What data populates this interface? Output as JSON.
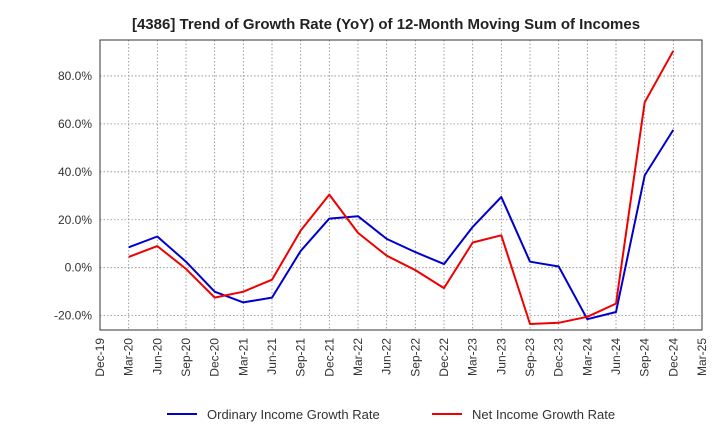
{
  "chart_data": {
    "type": "line",
    "title": "[4386]  Trend of Growth Rate (YoY) of 12-Month Moving Sum of Incomes",
    "xlabel": "",
    "ylabel": "",
    "categories": [
      "Dec-19",
      "Mar-20",
      "Jun-20",
      "Sep-20",
      "Dec-20",
      "Mar-21",
      "Jun-21",
      "Sep-21",
      "Dec-21",
      "Mar-22",
      "Jun-22",
      "Sep-22",
      "Dec-22",
      "Mar-23",
      "Jun-23",
      "Sep-23",
      "Dec-23",
      "Mar-24",
      "Jun-24",
      "Sep-24",
      "Dec-24",
      "Mar-25"
    ],
    "ylim": [
      -26,
      95
    ],
    "yticks": [
      -20,
      0,
      20,
      40,
      60,
      80
    ],
    "ytick_labels": [
      "-20.0%",
      "0.0%",
      "20.0%",
      "40.0%",
      "60.0%",
      "80.0%"
    ],
    "grid": true,
    "legend_position": "bottom",
    "series": [
      {
        "name": "Ordinary Income Growth Rate",
        "color": "#0000cc",
        "values": [
          null,
          8.5,
          13.0,
          2.5,
          -10.0,
          -14.5,
          -12.5,
          7.0,
          20.5,
          21.5,
          12.0,
          6.5,
          1.5,
          17.0,
          29.5,
          2.5,
          0.5,
          -21.5,
          -18.5,
          38.5,
          57.5,
          null
        ]
      },
      {
        "name": "Net Income Growth Rate",
        "color": "#ee0000",
        "values": [
          null,
          4.5,
          9.0,
          -0.5,
          -12.5,
          -10.0,
          -5.0,
          15.5,
          30.5,
          14.5,
          5.0,
          -1.0,
          -8.5,
          10.5,
          13.5,
          -23.5,
          -23.0,
          -20.5,
          -15.0,
          69.0,
          90.5,
          null
        ]
      }
    ]
  }
}
